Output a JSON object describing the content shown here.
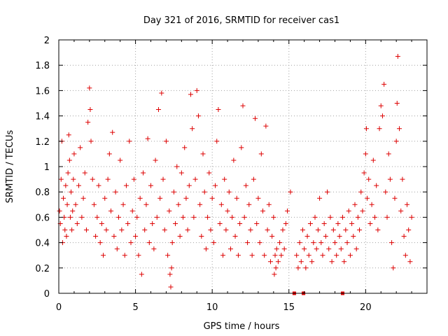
{
  "chart_data": {
    "type": "scatter",
    "title": "Day 321 of 2016, SRMTID for receiver cas1",
    "xlabel": "GPS time / hours",
    "ylabel": "SRMTID / TECUs",
    "xlim": [
      0,
      24
    ],
    "ylim": [
      0,
      2
    ],
    "x_ticks": [
      0,
      5,
      10,
      15,
      20
    ],
    "x_tick_labels": [
      "0",
      "5",
      "10",
      "15",
      "20"
    ],
    "y_ticks": [
      0,
      0.2,
      0.4,
      0.6,
      0.8,
      1.0,
      1.2,
      1.4,
      1.6,
      1.8,
      2.0
    ],
    "y_tick_labels": [
      "0",
      "0.2",
      "0.4",
      "0.6",
      "0.8",
      "1",
      "1.2",
      "1.4",
      "1.6",
      "1.8",
      "2"
    ],
    "grid": true,
    "marker": "+",
    "color": "#dd0000",
    "series": [
      {
        "name": "SRMTID",
        "points": [
          [
            0.05,
            0.65
          ],
          [
            0.1,
            0.55
          ],
          [
            0.15,
            0.9
          ],
          [
            0.2,
            1.2
          ],
          [
            0.25,
            0.4
          ],
          [
            0.3,
            0.75
          ],
          [
            0.35,
            0.6
          ],
          [
            0.4,
            0.5
          ],
          [
            0.45,
            0.85
          ],
          [
            0.5,
            0.45
          ],
          [
            0.55,
            0.7
          ],
          [
            0.6,
            0.95
          ],
          [
            0.65,
            1.25
          ],
          [
            0.7,
            1.05
          ],
          [
            0.75,
            0.6
          ],
          [
            0.8,
            0.8
          ],
          [
            0.85,
            0.5
          ],
          [
            0.9,
            0.65
          ],
          [
            0.95,
            0.9
          ],
          [
            1.0,
            1.1
          ],
          [
            1.1,
            0.7
          ],
          [
            1.2,
            0.55
          ],
          [
            1.3,
            0.85
          ],
          [
            1.4,
            1.15
          ],
          [
            1.5,
            0.6
          ],
          [
            1.6,
            0.75
          ],
          [
            1.7,
            0.95
          ],
          [
            1.8,
            0.5
          ],
          [
            1.9,
            1.35
          ],
          [
            2.0,
            1.62
          ],
          [
            2.05,
            1.45
          ],
          [
            2.1,
            1.2
          ],
          [
            2.2,
            0.9
          ],
          [
            2.3,
            0.7
          ],
          [
            2.4,
            0.45
          ],
          [
            2.5,
            0.6
          ],
          [
            2.6,
            0.85
          ],
          [
            2.7,
            0.4
          ],
          [
            2.8,
            0.55
          ],
          [
            2.9,
            0.3
          ],
          [
            3.0,
            0.75
          ],
          [
            3.1,
            0.5
          ],
          [
            3.2,
            0.9
          ],
          [
            3.3,
            1.1
          ],
          [
            3.4,
            0.65
          ],
          [
            3.5,
            1.27
          ],
          [
            3.6,
            0.45
          ],
          [
            3.7,
            0.8
          ],
          [
            3.8,
            0.35
          ],
          [
            3.9,
            0.6
          ],
          [
            4.0,
            1.05
          ],
          [
            4.1,
            0.5
          ],
          [
            4.2,
            0.7
          ],
          [
            4.3,
            0.3
          ],
          [
            4.4,
            0.85
          ],
          [
            4.5,
            0.55
          ],
          [
            4.6,
            1.2
          ],
          [
            4.7,
            0.4
          ],
          [
            4.8,
            0.65
          ],
          [
            4.9,
            0.9
          ],
          [
            5.0,
            0.45
          ],
          [
            5.1,
            0.6
          ],
          [
            5.2,
            0.3
          ],
          [
            5.3,
            0.75
          ],
          [
            5.4,
            0.15
          ],
          [
            5.5,
            0.95
          ],
          [
            5.6,
            0.5
          ],
          [
            5.7,
            0.7
          ],
          [
            5.8,
            1.22
          ],
          [
            5.9,
            0.4
          ],
          [
            6.0,
            0.85
          ],
          [
            6.1,
            0.55
          ],
          [
            6.2,
            0.35
          ],
          [
            6.3,
            1.05
          ],
          [
            6.4,
            0.6
          ],
          [
            6.5,
            1.45
          ],
          [
            6.6,
            0.75
          ],
          [
            6.7,
            1.58
          ],
          [
            6.8,
            0.9
          ],
          [
            6.9,
            0.5
          ],
          [
            7.0,
            1.2
          ],
          [
            7.1,
            0.3
          ],
          [
            7.2,
            0.65
          ],
          [
            7.25,
            0.15
          ],
          [
            7.3,
            0.05
          ],
          [
            7.35,
            0.2
          ],
          [
            7.4,
            0.4
          ],
          [
            7.5,
            0.8
          ],
          [
            7.6,
            0.55
          ],
          [
            7.7,
            1.0
          ],
          [
            7.8,
            0.7
          ],
          [
            7.9,
            0.45
          ],
          [
            8.0,
            0.95
          ],
          [
            8.1,
            0.6
          ],
          [
            8.2,
            1.15
          ],
          [
            8.3,
            0.75
          ],
          [
            8.4,
            0.5
          ],
          [
            8.5,
            0.85
          ],
          [
            8.6,
            1.57
          ],
          [
            8.7,
            1.3
          ],
          [
            8.8,
            0.6
          ],
          [
            8.9,
            0.9
          ],
          [
            9.0,
            1.6
          ],
          [
            9.1,
            1.4
          ],
          [
            9.2,
            0.7
          ],
          [
            9.3,
            0.45
          ],
          [
            9.4,
            1.1
          ],
          [
            9.5,
            0.8
          ],
          [
            9.6,
            0.35
          ],
          [
            9.7,
            0.6
          ],
          [
            9.8,
            0.95
          ],
          [
            9.9,
            0.5
          ],
          [
            10.0,
            0.75
          ],
          [
            10.1,
            0.4
          ],
          [
            10.2,
            0.85
          ],
          [
            10.3,
            1.2
          ],
          [
            10.4,
            1.45
          ],
          [
            10.5,
            0.55
          ],
          [
            10.6,
            0.7
          ],
          [
            10.7,
            0.3
          ],
          [
            10.8,
            0.9
          ],
          [
            10.9,
            0.5
          ],
          [
            11.0,
            0.65
          ],
          [
            11.1,
            0.8
          ],
          [
            11.2,
            0.35
          ],
          [
            11.3,
            0.6
          ],
          [
            11.4,
            1.05
          ],
          [
            11.5,
            0.45
          ],
          [
            11.6,
            0.75
          ],
          [
            11.7,
            0.3
          ],
          [
            11.8,
            0.55
          ],
          [
            11.9,
            1.15
          ],
          [
            12.0,
            1.48
          ],
          [
            12.1,
            0.6
          ],
          [
            12.2,
            0.85
          ],
          [
            12.3,
            0.4
          ],
          [
            12.4,
            0.7
          ],
          [
            12.5,
            0.5
          ],
          [
            12.6,
            0.3
          ],
          [
            12.7,
            0.9
          ],
          [
            12.8,
            1.38
          ],
          [
            12.9,
            0.55
          ],
          [
            13.0,
            0.75
          ],
          [
            13.1,
            0.4
          ],
          [
            13.2,
            1.1
          ],
          [
            13.3,
            0.65
          ],
          [
            13.4,
            0.3
          ],
          [
            13.5,
            1.32
          ],
          [
            13.6,
            0.5
          ],
          [
            13.7,
            0.7
          ],
          [
            13.8,
            0.25
          ],
          [
            13.9,
            0.45
          ],
          [
            14.0,
            0.6
          ],
          [
            14.05,
            0.15
          ],
          [
            14.1,
            0.3
          ],
          [
            14.15,
            0.2
          ],
          [
            14.2,
            0.35
          ],
          [
            14.3,
            0.25
          ],
          [
            14.4,
            0.4
          ],
          [
            14.5,
            0.3
          ],
          [
            14.6,
            0.5
          ],
          [
            14.7,
            0.35
          ],
          [
            14.8,
            0.55
          ],
          [
            14.9,
            0.65
          ],
          [
            15.1,
            0.8
          ],
          [
            15.5,
            0.3
          ],
          [
            15.6,
            0.2
          ],
          [
            15.7,
            0.4
          ],
          [
            15.8,
            0.25
          ],
          [
            15.9,
            0.5
          ],
          [
            16.0,
            0.35
          ],
          [
            16.1,
            0.2
          ],
          [
            16.2,
            0.45
          ],
          [
            16.3,
            0.3
          ],
          [
            16.4,
            0.55
          ],
          [
            16.5,
            0.25
          ],
          [
            16.6,
            0.4
          ],
          [
            16.7,
            0.6
          ],
          [
            16.8,
            0.35
          ],
          [
            16.9,
            0.5
          ],
          [
            17.0,
            0.75
          ],
          [
            17.1,
            0.4
          ],
          [
            17.2,
            0.3
          ],
          [
            17.3,
            0.55
          ],
          [
            17.4,
            0.45
          ],
          [
            17.5,
            0.8
          ],
          [
            17.6,
            0.35
          ],
          [
            17.7,
            0.6
          ],
          [
            17.8,
            0.25
          ],
          [
            17.9,
            0.5
          ],
          [
            18.0,
            0.4
          ],
          [
            18.1,
            0.3
          ],
          [
            18.2,
            0.55
          ],
          [
            18.3,
            0.45
          ],
          [
            18.4,
            0.35
          ],
          [
            18.5,
            0.6
          ],
          [
            18.6,
            0.25
          ],
          [
            18.7,
            0.5
          ],
          [
            18.8,
            0.4
          ],
          [
            18.9,
            0.65
          ],
          [
            19.0,
            0.3
          ],
          [
            19.1,
            0.55
          ],
          [
            19.2,
            0.45
          ],
          [
            19.3,
            0.7
          ],
          [
            19.4,
            0.35
          ],
          [
            19.5,
            0.6
          ],
          [
            19.6,
            0.5
          ],
          [
            19.7,
            0.8
          ],
          [
            19.8,
            0.65
          ],
          [
            19.9,
            0.95
          ],
          [
            20.0,
            1.1
          ],
          [
            20.05,
            1.3
          ],
          [
            20.1,
            0.75
          ],
          [
            20.2,
            0.9
          ],
          [
            20.3,
            0.55
          ],
          [
            20.4,
            0.7
          ],
          [
            20.5,
            1.05
          ],
          [
            20.6,
            0.6
          ],
          [
            20.7,
            0.85
          ],
          [
            20.8,
            0.5
          ],
          [
            20.9,
            1.3
          ],
          [
            21.0,
            1.48
          ],
          [
            21.1,
            1.4
          ],
          [
            21.2,
            1.65
          ],
          [
            21.3,
            0.8
          ],
          [
            21.4,
            0.6
          ],
          [
            21.5,
            1.1
          ],
          [
            21.6,
            0.9
          ],
          [
            21.7,
            0.4
          ],
          [
            21.8,
            0.2
          ],
          [
            21.9,
            0.75
          ],
          [
            22.0,
            1.2
          ],
          [
            22.05,
            1.5
          ],
          [
            22.1,
            1.87
          ],
          [
            22.2,
            1.3
          ],
          [
            22.3,
            0.65
          ],
          [
            22.4,
            0.9
          ],
          [
            22.5,
            0.45
          ],
          [
            22.6,
            0.3
          ],
          [
            22.7,
            0.7
          ],
          [
            22.8,
            0.5
          ],
          [
            22.9,
            0.25
          ],
          [
            23.0,
            0.6
          ]
        ]
      }
    ],
    "zero_markers": [
      15.35,
      15.95,
      18.5
    ]
  }
}
